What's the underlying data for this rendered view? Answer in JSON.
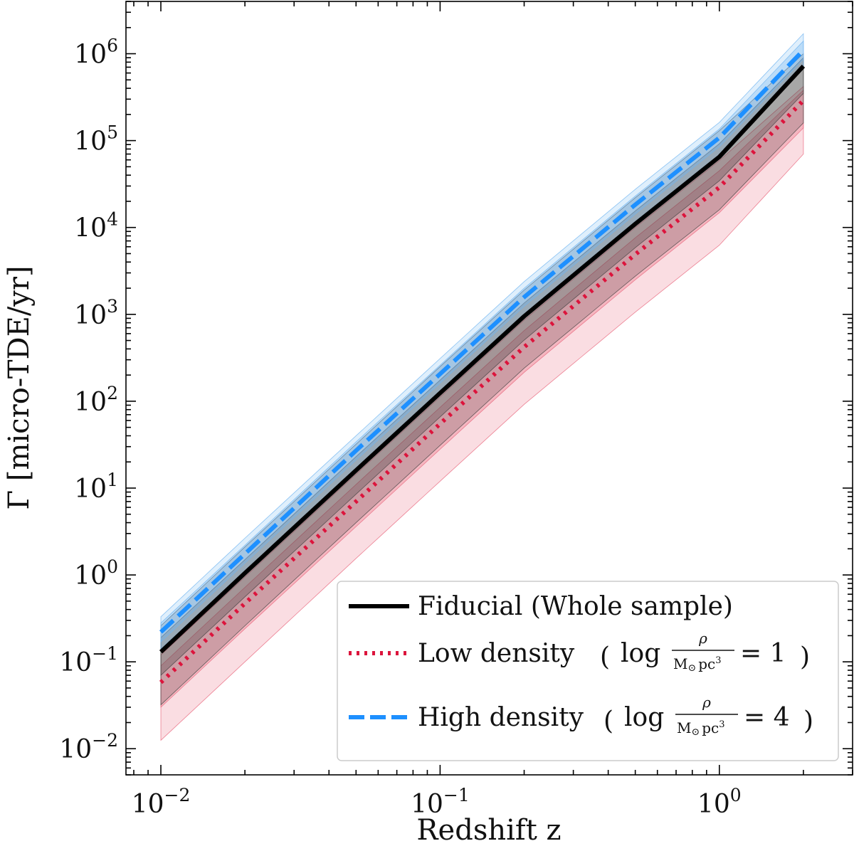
{
  "chart_data": {
    "type": "line",
    "xscale": "log",
    "yscale": "log",
    "xlim": [
      0.0075,
      3.0
    ],
    "ylim": [
      0.005,
      4000000
    ],
    "xlabel": "Redshift z",
    "ylabel": "Γ [micro-TDE/yr]",
    "x_ticks": [
      {
        "value": 0.01,
        "mant": "10",
        "exp": "−2"
      },
      {
        "value": 0.1,
        "mant": "10",
        "exp": "−1"
      },
      {
        "value": 1,
        "mant": "10",
        "exp": "0"
      }
    ],
    "y_ticks": [
      {
        "value": 0.01,
        "mant": "10",
        "exp": "−2"
      },
      {
        "value": 0.1,
        "mant": "10",
        "exp": "−1"
      },
      {
        "value": 1,
        "mant": "10",
        "exp": "0"
      },
      {
        "value": 10,
        "mant": "10",
        "exp": "1"
      },
      {
        "value": 100,
        "mant": "10",
        "exp": "2"
      },
      {
        "value": 1000,
        "mant": "10",
        "exp": "3"
      },
      {
        "value": 10000,
        "mant": "10",
        "exp": "4"
      },
      {
        "value": 100000,
        "mant": "10",
        "exp": "5"
      },
      {
        "value": 1000000,
        "mant": "10",
        "exp": "6"
      }
    ],
    "x": [
      0.01,
      0.02,
      0.05,
      0.1,
      0.2,
      0.5,
      1.0,
      2.0
    ],
    "series": [
      {
        "name": "Fiducial (Whole sample)",
        "color": "#000000",
        "style": "solid",
        "values": [
          0.13,
          1.05,
          16,
          124,
          950,
          11000,
          65000,
          720000
        ],
        "band_outer_upper": [
          0.26,
          2.1,
          32,
          250,
          1900,
          22000,
          130000,
          1000000
        ],
        "band_outer_lower": [
          0.032,
          0.26,
          4,
          31,
          240,
          2750,
          16000,
          160000
        ],
        "band_inner_upper": [
          0.19,
          1.5,
          23,
          175,
          1350,
          15500,
          92000,
          900000
        ],
        "band_inner_lower": [
          0.07,
          0.56,
          8.5,
          66,
          505,
          5850,
          34500,
          350000
        ],
        "band_color": "#444444"
      },
      {
        "name": "Low density",
        "color": "#dc143c",
        "style": "dotted",
        "values": [
          0.058,
          0.47,
          7,
          55,
          420,
          4900,
          29000,
          290000
        ],
        "band_outer_upper": [
          0.12,
          0.95,
          14.5,
          112,
          860,
          10000,
          59000,
          420000
        ],
        "band_outer_lower": [
          0.0125,
          0.1,
          1.55,
          12,
          92,
          1060,
          6250,
          70000
        ],
        "band_inner_upper": [
          0.09,
          0.72,
          11,
          85,
          650,
          7600,
          45000,
          380000
        ],
        "band_inner_lower": [
          0.03,
          0.24,
          3.6,
          28,
          215,
          2500,
          14800,
          140000
        ],
        "band_color": "#e8647a"
      },
      {
        "name": "High density",
        "color": "#1e90ff",
        "style": "dashed",
        "values": [
          0.22,
          1.75,
          27,
          206,
          1580,
          18300,
          108000,
          1100000
        ],
        "band_outer_upper": [
          0.33,
          2.65,
          40,
          310,
          2380,
          27500,
          162000,
          1700000
        ],
        "band_outer_lower": [
          0.14,
          1.1,
          17,
          132,
          1010,
          11700,
          69000,
          700000
        ],
        "band_inner_upper": [
          0.28,
          2.2,
          34,
          260,
          2000,
          23000,
          136000,
          1400000
        ],
        "band_inner_lower": [
          0.17,
          1.37,
          21,
          162,
          1240,
          14300,
          85000,
          870000
        ],
        "band_color": "#6fb4f0"
      }
    ],
    "legend": {
      "position": "lower-right",
      "entries": [
        {
          "main": "Fiducial (Whole sample)"
        },
        {
          "main": "Low density",
          "log": "log",
          "num": "ρ",
          "den_m": "M",
          "den_sun": "⊙",
          "den_pc": "pc",
          "den_exp": "3",
          "eq": "= 1"
        },
        {
          "main": "High density",
          "log": "log",
          "num": "ρ",
          "den_m": "M",
          "den_sun": "⊙",
          "den_pc": "pc",
          "den_exp": "3",
          "eq": "= 4"
        }
      ]
    }
  }
}
